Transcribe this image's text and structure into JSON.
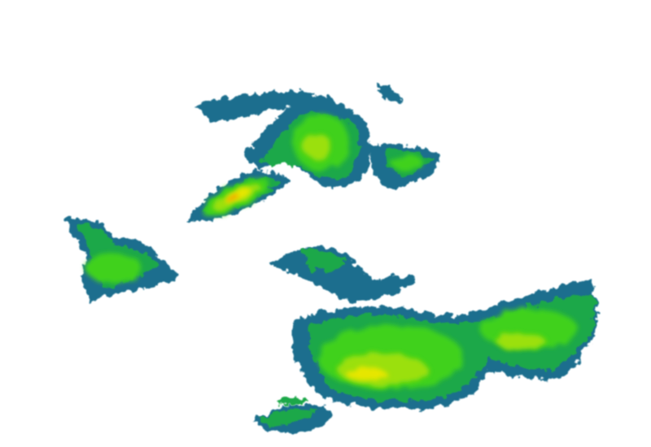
{
  "radar": {
    "palette": {
      "edge": "#1a6e8e",
      "low": "#1fa84a",
      "mid": "#3fd11a",
      "bright": "#9be00a",
      "high": "#e6e600",
      "core": "#f0a000",
      "peak": "#e04000"
    }
  }
}
